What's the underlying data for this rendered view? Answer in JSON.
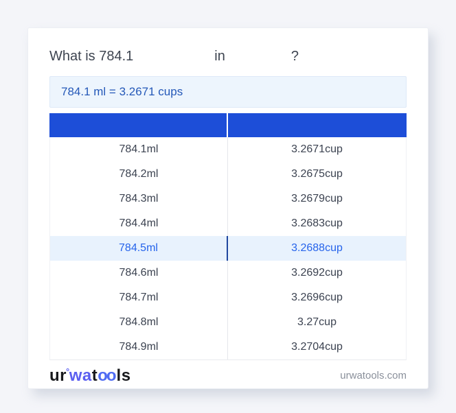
{
  "question": {
    "text": "What is 784.1",
    "connector": "in",
    "mark": "?"
  },
  "result": {
    "text": "784.1 ml = 3.2671 cups"
  },
  "table": {
    "header": {
      "ml": "",
      "cup": ""
    },
    "header_color": "#1d4ed8",
    "highlighted_index": 4,
    "rows": [
      {
        "ml": "784.1ml",
        "cup": "3.2671cup"
      },
      {
        "ml": "784.2ml",
        "cup": "3.2675cup"
      },
      {
        "ml": "784.3ml",
        "cup": "3.2679cup"
      },
      {
        "ml": "784.4ml",
        "cup": "3.2683cup"
      },
      {
        "ml": "784.5ml",
        "cup": "3.2688cup"
      },
      {
        "ml": "784.6ml",
        "cup": "3.2692cup"
      },
      {
        "ml": "784.7ml",
        "cup": "3.2696cup"
      },
      {
        "ml": "784.8ml",
        "cup": "3.27cup"
      },
      {
        "ml": "784.9ml",
        "cup": "3.2704cup"
      }
    ]
  },
  "footer": {
    "logo": {
      "part1": "ur",
      "ring": "°",
      "part2": "wa",
      "part3": "t",
      "part4": "oo",
      "part5": "ls"
    },
    "domain": "urwatools.com"
  },
  "colors": {
    "accent_blue": "#1d4ed8",
    "result_text": "#2458b8",
    "result_bg": "#edf5fd",
    "highlight_row_bg": "#e8f2fd",
    "highlight_row_text": "#2563eb",
    "page_bg": "#f4f5f9"
  }
}
